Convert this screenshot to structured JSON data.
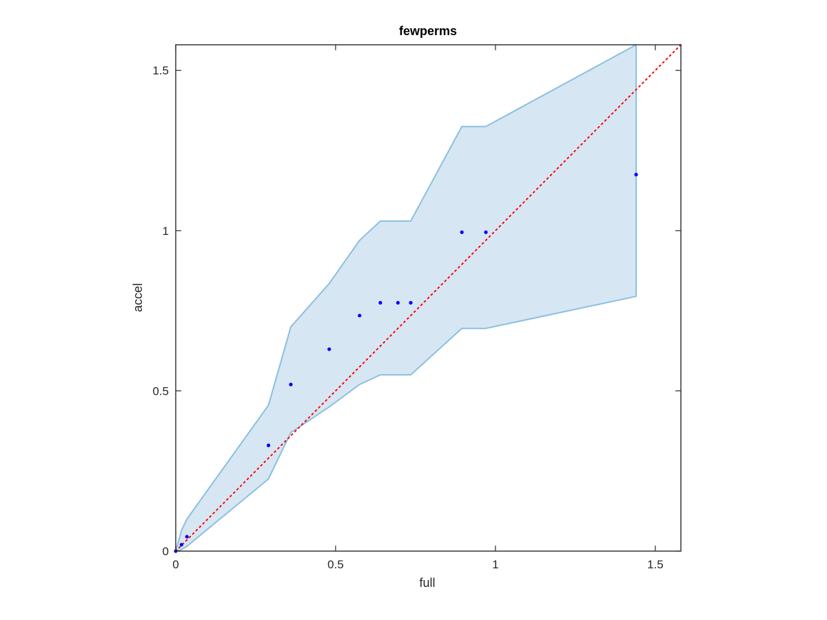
{
  "chart_data": {
    "type": "scatter",
    "title": "fewperms",
    "xlabel": "full",
    "ylabel": "accel",
    "xlim": [
      0,
      1.58
    ],
    "ylim": [
      0,
      1.58
    ],
    "xticks": [
      0,
      0.5,
      1,
      1.5
    ],
    "yticks": [
      0,
      0.5,
      1,
      1.5
    ],
    "xtick_labels": [
      "0",
      "0.5",
      "1",
      "1.5"
    ],
    "ytick_labels": [
      "0",
      "0.5",
      "1",
      "1.5"
    ],
    "grid": false,
    "box": true,
    "points": {
      "x": [
        0,
        0.018,
        0.035,
        0.29,
        0.36,
        0.48,
        0.575,
        0.64,
        0.695,
        0.735,
        0.895,
        0.97,
        1.44
      ],
      "y": [
        0,
        0.02,
        0.045,
        0.33,
        0.52,
        0.63,
        0.735,
        0.775,
        0.775,
        0.775,
        0.995,
        0.995,
        1.175
      ],
      "color": "#0000ff"
    },
    "band": {
      "upper": {
        "x": [
          0,
          0.018,
          0.035,
          0.29,
          0.36,
          0.48,
          0.575,
          0.64,
          0.695,
          0.735,
          0.895,
          0.97,
          1.44
        ],
        "y": [
          0,
          0.065,
          0.1,
          0.455,
          0.7,
          0.835,
          0.97,
          1.03,
          1.03,
          1.03,
          1.325,
          1.325,
          1.58
        ]
      },
      "lower": {
        "x": [
          0,
          0.018,
          0.035,
          0.29,
          0.36,
          0.48,
          0.575,
          0.64,
          0.695,
          0.735,
          0.895,
          0.97,
          1.44
        ],
        "y": [
          0,
          0.005,
          0.015,
          0.225,
          0.37,
          0.45,
          0.52,
          0.55,
          0.55,
          0.55,
          0.695,
          0.695,
          0.795
        ]
      },
      "fill_color": "#d6e6f2",
      "edge_color": "#8bbfdf"
    },
    "reference_line": {
      "x": [
        0,
        1.58
      ],
      "y": [
        0,
        1.58
      ],
      "style": "dotted",
      "color": "#ff0000"
    }
  }
}
